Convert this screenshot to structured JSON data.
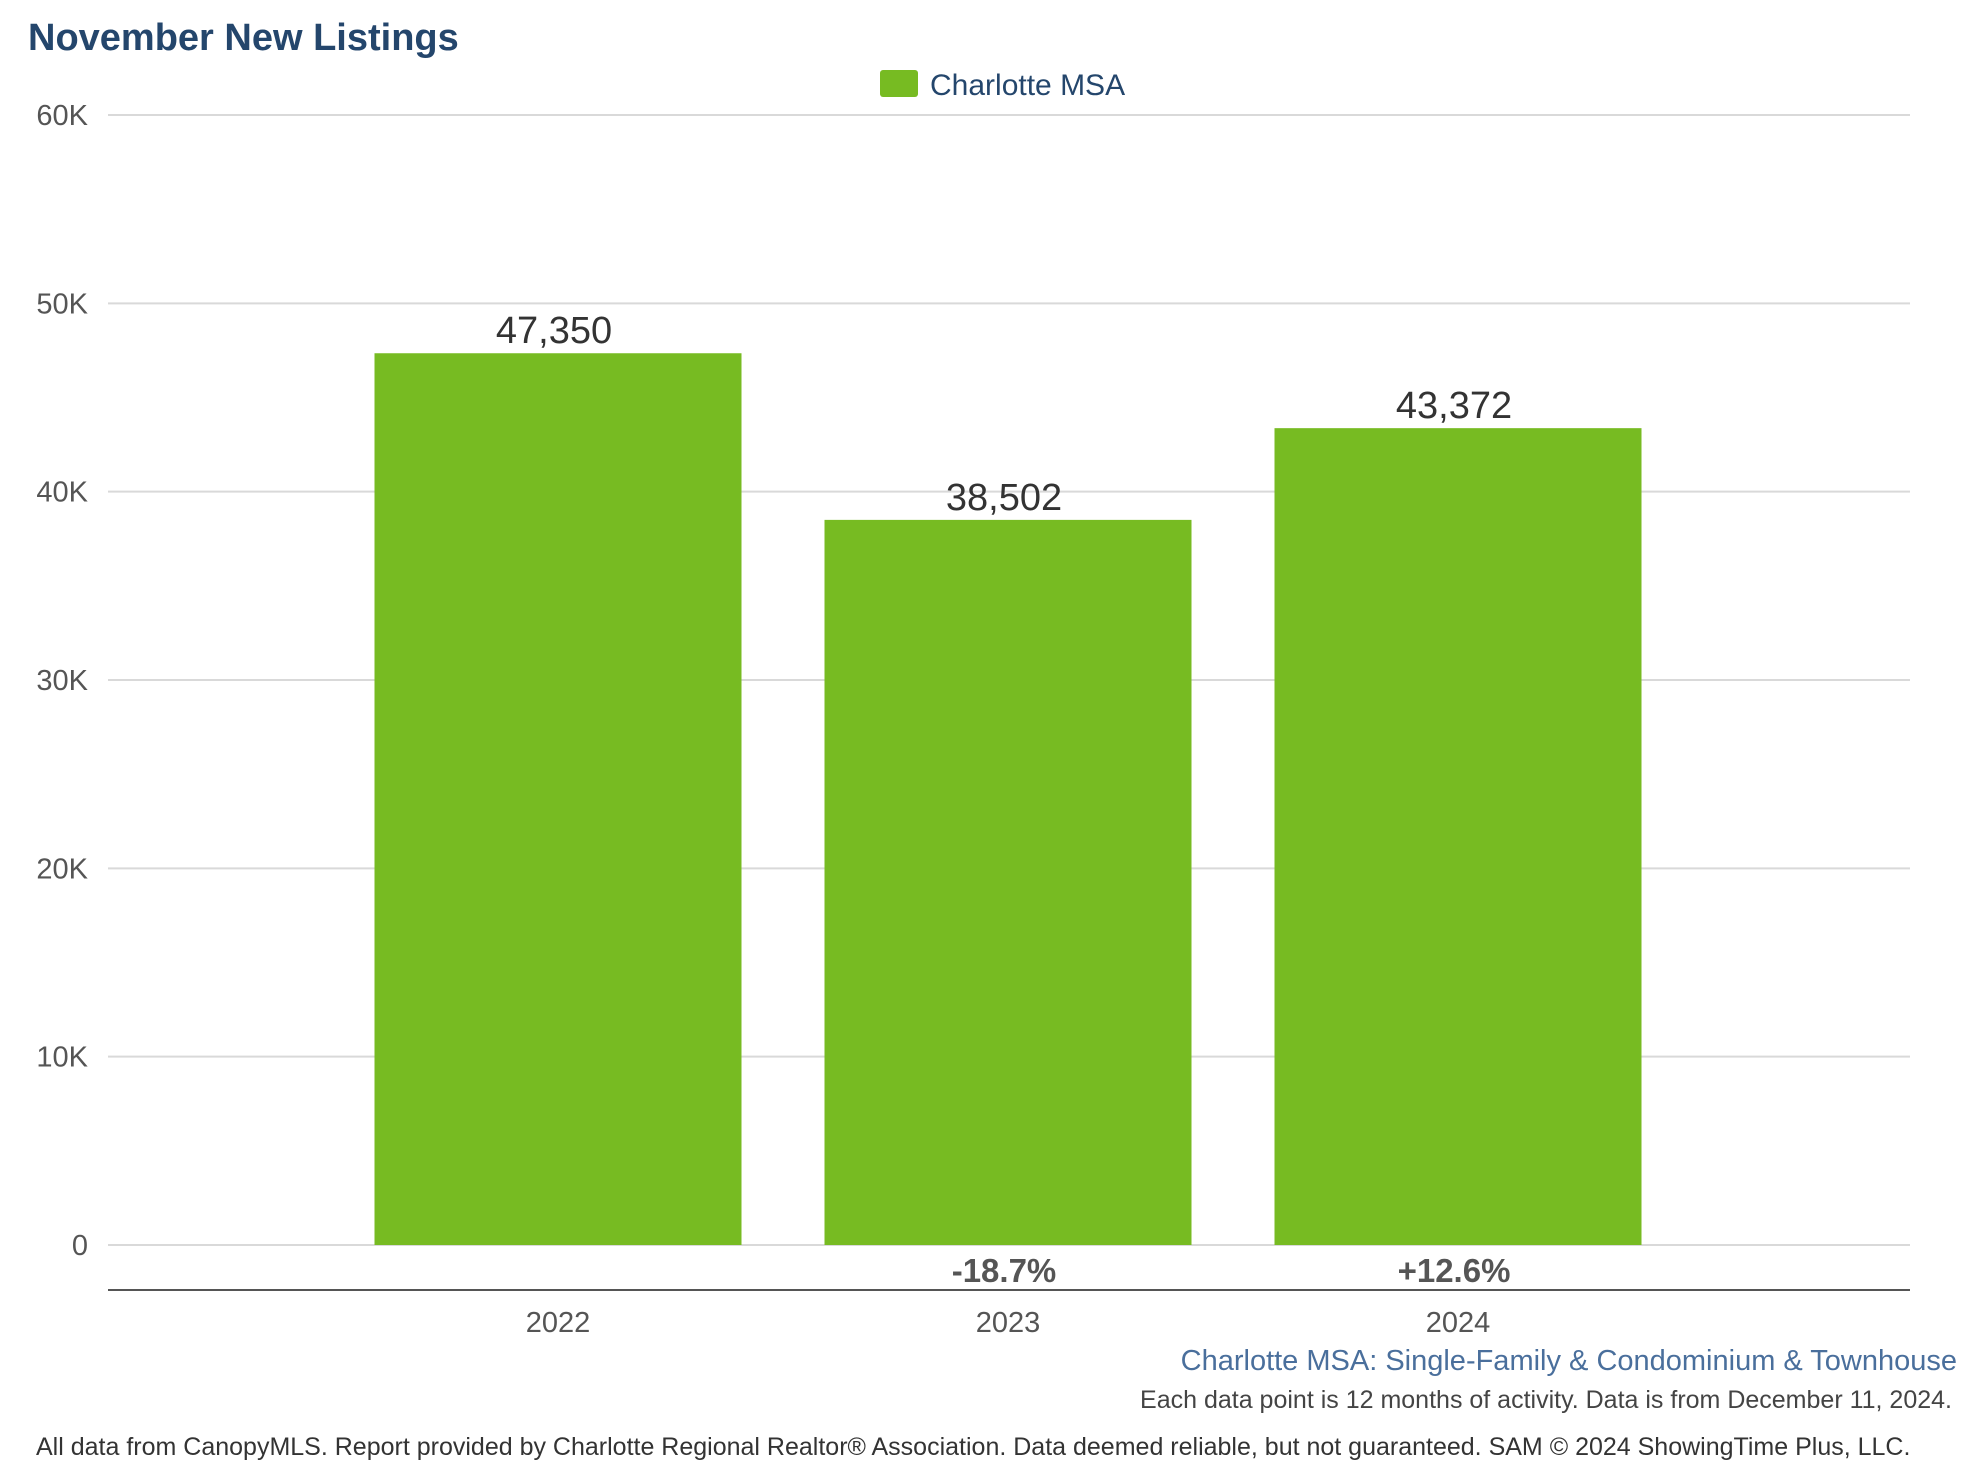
{
  "chart_data": {
    "type": "bar",
    "title": "November New Listings",
    "categories": [
      "2022",
      "2023",
      "2024"
    ],
    "series": [
      {
        "name": "Charlotte MSA",
        "values": [
          47350,
          38502,
          43372
        ],
        "value_labels": [
          "47,350",
          "38,502",
          "43,372"
        ],
        "color": "#77bb22"
      }
    ],
    "change_labels": [
      "",
      "-18.7%",
      "+12.6%"
    ],
    "ylim": [
      0,
      60000
    ],
    "yticks": [
      {
        "value": 0,
        "label": "0"
      },
      {
        "value": 10000,
        "label": "10K"
      },
      {
        "value": 20000,
        "label": "20K"
      },
      {
        "value": 30000,
        "label": "30K"
      },
      {
        "value": 40000,
        "label": "40K"
      },
      {
        "value": 50000,
        "label": "50K"
      },
      {
        "value": 60000,
        "label": "60K"
      }
    ],
    "grid": true,
    "legend": "top-center",
    "xlabel": "",
    "ylabel": ""
  },
  "subtitle": "Charlotte MSA: Single-Family & Condominium & Townhouse",
  "note": "Each data point is 12 months of activity. Data is from December 11, 2024.",
  "footer": "All data from CanopyMLS. Report provided by Charlotte Regional Realtor® Association. Data deemed reliable, but not guaranteed. SAM © 2024 ShowingTime Plus, LLC.",
  "colors": {
    "title": "#24466c",
    "bar": "#77bb22",
    "grid": "#d9d9d9",
    "axis": "#555555",
    "subtitle": "#4a6f9c"
  }
}
